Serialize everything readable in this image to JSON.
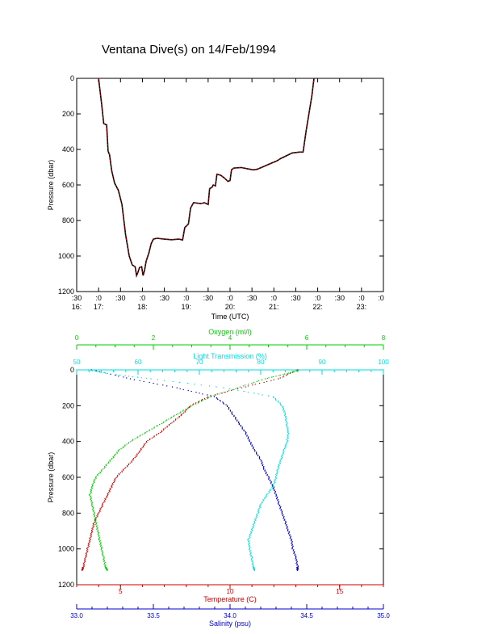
{
  "title": "Ventana Dive(s) on 14/Feb/1994",
  "colors": {
    "axis": "#000000",
    "pressure_trace": "#cc0000",
    "pressure_trace_dark": "#000000",
    "temperature": "#cc0000",
    "salinity": "#0000cc",
    "oxygen": "#00cc00",
    "transmission": "#00dddd"
  },
  "chart_data": [
    {
      "type": "line",
      "xlabel": "Time (UTC)",
      "ylabel": "Pressure (dbar)",
      "ylim": [
        1200,
        0
      ],
      "y_inverted": true,
      "yticks": [
        0,
        200,
        400,
        600,
        800,
        1000,
        1200
      ],
      "x_minutes_range": [
        990,
        1410
      ],
      "xtick_minutes": [
        990,
        1020,
        1050,
        1080,
        1110,
        1140,
        1170,
        1200,
        1230,
        1260,
        1290,
        1320,
        1350,
        1380,
        1410
      ],
      "xtick_top": [
        ":30",
        ":0",
        ":30",
        ":0",
        ":30",
        ":0",
        ":30",
        ":0",
        ":30",
        ":0",
        ":30",
        ":0",
        ":30",
        ":0",
        ":0"
      ],
      "xtick_bottom": [
        "16:",
        "17:",
        "",
        "18:",
        "",
        "19:",
        "",
        "20:",
        "",
        "21:",
        "",
        "22:",
        "",
        "23:",
        ""
      ],
      "series": [
        {
          "points": [
            [
              1020,
              0
            ],
            [
              1024,
              140
            ],
            [
              1027,
              255
            ],
            [
              1031,
              262
            ],
            [
              1033,
              410
            ],
            [
              1035,
              430
            ],
            [
              1038,
              520
            ],
            [
              1042,
              590
            ],
            [
              1047,
              630
            ],
            [
              1052,
              710
            ],
            [
              1057,
              880
            ],
            [
              1062,
              1000
            ],
            [
              1066,
              1050
            ],
            [
              1070,
              1060
            ],
            [
              1072,
              1110
            ],
            [
              1074,
              1090
            ],
            [
              1076,
              1065
            ],
            [
              1079,
              1060
            ],
            [
              1081,
              1110
            ],
            [
              1083,
              1080
            ],
            [
              1085,
              1030
            ],
            [
              1089,
              980
            ],
            [
              1092,
              930
            ],
            [
              1095,
              905
            ],
            [
              1100,
              900
            ],
            [
              1110,
              905
            ],
            [
              1120,
              908
            ],
            [
              1130,
              905
            ],
            [
              1135,
              910
            ],
            [
              1138,
              840
            ],
            [
              1143,
              820
            ],
            [
              1146,
              730
            ],
            [
              1150,
              700
            ],
            [
              1160,
              705
            ],
            [
              1165,
              700
            ],
            [
              1170,
              710
            ],
            [
              1172,
              620
            ],
            [
              1175,
              615
            ],
            [
              1177,
              600
            ],
            [
              1180,
              605
            ],
            [
              1182,
              540
            ],
            [
              1187,
              545
            ],
            [
              1192,
              560
            ],
            [
              1197,
              580
            ],
            [
              1200,
              575
            ],
            [
              1202,
              515
            ],
            [
              1205,
              505
            ],
            [
              1215,
              502
            ],
            [
              1225,
              510
            ],
            [
              1232,
              515
            ],
            [
              1237,
              512
            ],
            [
              1244,
              500
            ],
            [
              1255,
              480
            ],
            [
              1264,
              465
            ],
            [
              1270,
              450
            ],
            [
              1280,
              430
            ],
            [
              1285,
              420
            ],
            [
              1295,
              415
            ],
            [
              1300,
              415
            ],
            [
              1304,
              300
            ],
            [
              1308,
              200
            ],
            [
              1312,
              100
            ],
            [
              1315,
              0
            ]
          ]
        }
      ]
    },
    {
      "type": "scatter",
      "ylabel": "Pressure (dbar)",
      "ylim": [
        1200,
        0
      ],
      "y_inverted": true,
      "yticks": [
        0,
        200,
        400,
        600,
        800,
        1000,
        1200
      ],
      "axes": [
        {
          "name": "temperature",
          "label": "Temperature (C)",
          "position": "bottom",
          "range": [
            3,
            17
          ],
          "ticks": [
            5,
            10,
            15
          ],
          "ticklabels": [
            "5",
            "10",
            "15"
          ]
        },
        {
          "name": "salinity",
          "label": "Salinity (psu)",
          "position": "bottom",
          "range": [
            33.0,
            35.0
          ],
          "ticks": [
            33.0,
            33.5,
            34.0,
            34.5,
            35.0
          ],
          "ticklabels": [
            "33.0",
            "33.5",
            "34.0",
            "34.5",
            "35.0"
          ]
        },
        {
          "name": "oxygen",
          "label": "Oxygen (ml/l)",
          "position": "top",
          "range": [
            0,
            8
          ],
          "ticks": [
            0,
            2,
            4,
            6,
            8
          ],
          "ticklabels": [
            "0",
            "2",
            "4",
            "6",
            "8"
          ]
        },
        {
          "name": "transmission",
          "label": "Light Transmission (%)",
          "position": "top",
          "range": [
            50,
            100
          ],
          "ticks": [
            50,
            60,
            70,
            80,
            90,
            100
          ],
          "ticklabels": [
            "50",
            "60",
            "70",
            "80",
            "90",
            "100"
          ]
        }
      ],
      "series": [
        {
          "name": "temperature",
          "axis": "temperature",
          "points": [
            [
              13.1,
              0
            ],
            [
              12.2,
              50
            ],
            [
              10.5,
              100
            ],
            [
              9.0,
              150
            ],
            [
              8.2,
              200
            ],
            [
              7.8,
              250
            ],
            [
              7.3,
              300
            ],
            [
              6.8,
              350
            ],
            [
              6.2,
              400
            ],
            [
              5.9,
              450
            ],
            [
              5.6,
              500
            ],
            [
              5.2,
              550
            ],
            [
              4.8,
              600
            ],
            [
              4.6,
              650
            ],
            [
              4.4,
              700
            ],
            [
              4.2,
              750
            ],
            [
              4.0,
              800
            ],
            [
              3.8,
              850
            ],
            [
              3.7,
              900
            ],
            [
              3.6,
              950
            ],
            [
              3.5,
              1000
            ],
            [
              3.4,
              1050
            ],
            [
              3.3,
              1100
            ],
            [
              3.25,
              1120
            ]
          ]
        },
        {
          "name": "salinity",
          "axis": "salinity",
          "points": [
            [
              33.1,
              0
            ],
            [
              33.35,
              50
            ],
            [
              33.65,
              100
            ],
            [
              33.9,
              150
            ],
            [
              33.98,
              200
            ],
            [
              34.02,
              250
            ],
            [
              34.06,
              300
            ],
            [
              34.1,
              350
            ],
            [
              34.13,
              400
            ],
            [
              34.16,
              450
            ],
            [
              34.2,
              500
            ],
            [
              34.22,
              550
            ],
            [
              34.25,
              600
            ],
            [
              34.28,
              650
            ],
            [
              34.3,
              700
            ],
            [
              34.32,
              750
            ],
            [
              34.34,
              800
            ],
            [
              34.36,
              850
            ],
            [
              34.38,
              900
            ],
            [
              34.4,
              950
            ],
            [
              34.41,
              1000
            ],
            [
              34.43,
              1050
            ],
            [
              34.44,
              1100
            ],
            [
              34.44,
              1120
            ]
          ]
        },
        {
          "name": "oxygen",
          "axis": "oxygen",
          "points": [
            [
              5.8,
              0
            ],
            [
              5.5,
              20
            ],
            [
              4.9,
              50
            ],
            [
              4.2,
              100
            ],
            [
              3.5,
              150
            ],
            [
              3.0,
              200
            ],
            [
              2.6,
              250
            ],
            [
              2.2,
              300
            ],
            [
              1.8,
              350
            ],
            [
              1.4,
              400
            ],
            [
              1.1,
              450
            ],
            [
              0.9,
              500
            ],
            [
              0.7,
              550
            ],
            [
              0.5,
              600
            ],
            [
              0.4,
              650
            ],
            [
              0.35,
              700
            ],
            [
              0.4,
              750
            ],
            [
              0.45,
              800
            ],
            [
              0.5,
              850
            ],
            [
              0.55,
              900
            ],
            [
              0.6,
              950
            ],
            [
              0.65,
              1000
            ],
            [
              0.7,
              1050
            ],
            [
              0.75,
              1100
            ],
            [
              0.8,
              1120
            ]
          ]
        },
        {
          "name": "transmission",
          "axis": "transmission",
          "points": [
            [
              52,
              0
            ],
            [
              55,
              20
            ],
            [
              62,
              50
            ],
            [
              74,
              100
            ],
            [
              82,
              150
            ],
            [
              83.5,
              200
            ],
            [
              84,
              250
            ],
            [
              84.2,
              300
            ],
            [
              84.5,
              350
            ],
            [
              84.3,
              400
            ],
            [
              83.8,
              450
            ],
            [
              83.3,
              500
            ],
            [
              82.8,
              550
            ],
            [
              82.5,
              600
            ],
            [
              82.0,
              650
            ],
            [
              81.0,
              700
            ],
            [
              80.0,
              750
            ],
            [
              79.5,
              800
            ],
            [
              79.0,
              850
            ],
            [
              78.5,
              900
            ],
            [
              78.0,
              950
            ],
            [
              78.2,
              1000
            ],
            [
              78.5,
              1050
            ],
            [
              78.8,
              1100
            ],
            [
              79.0,
              1120
            ]
          ]
        }
      ]
    }
  ]
}
